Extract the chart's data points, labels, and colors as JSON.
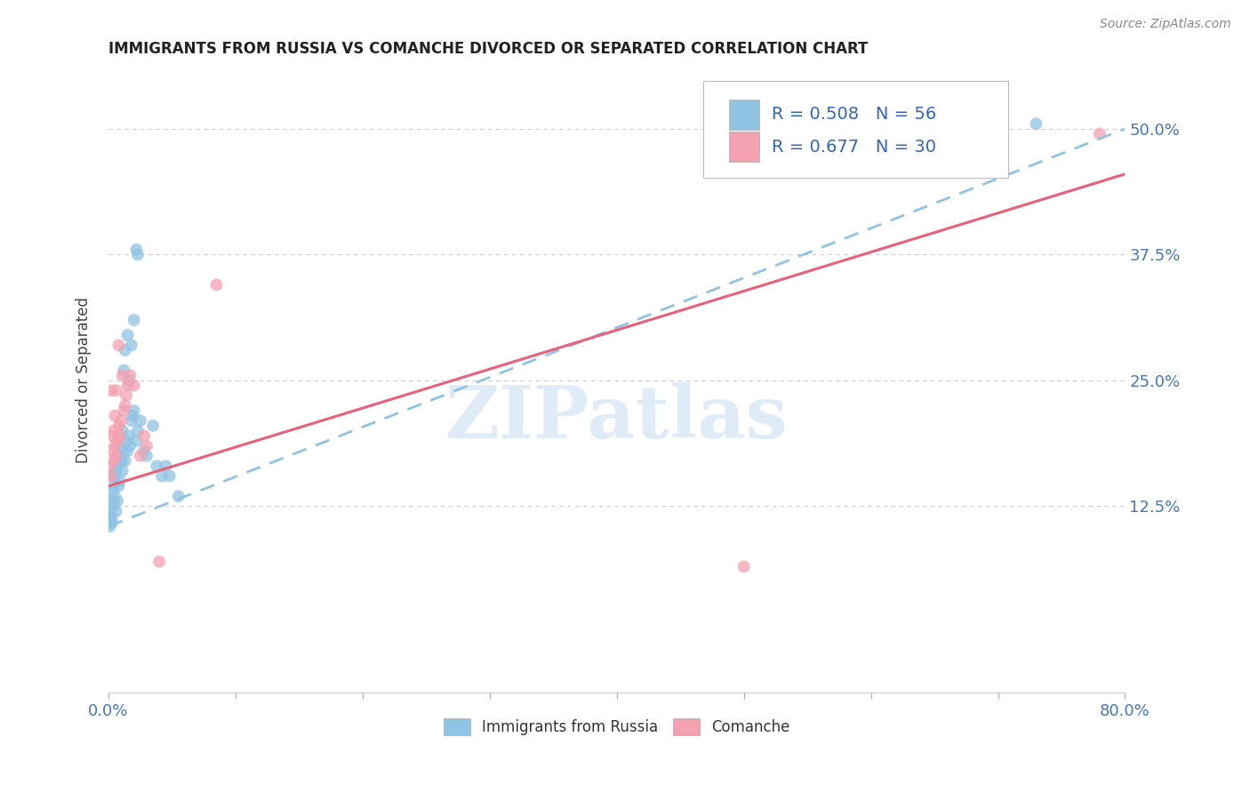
{
  "title": "IMMIGRANTS FROM RUSSIA VS COMANCHE DIVORCED OR SEPARATED CORRELATION CHART",
  "source": "Source: ZipAtlas.com",
  "ylabel": "Divorced or Separated",
  "ytick_labels": [
    "12.5%",
    "25.0%",
    "37.5%",
    "50.0%"
  ],
  "ytick_values": [
    0.125,
    0.25,
    0.375,
    0.5
  ],
  "xlim": [
    0.0,
    0.8
  ],
  "ylim": [
    -0.06,
    0.56
  ],
  "legend_russia": {
    "R": 0.508,
    "N": 56
  },
  "legend_comanche": {
    "R": 0.677,
    "N": 30
  },
  "watermark": "ZIPatlas",
  "russia_scatter": [
    [
      0.001,
      0.105
    ],
    [
      0.001,
      0.112
    ],
    [
      0.001,
      0.118
    ],
    [
      0.002,
      0.108
    ],
    [
      0.002,
      0.115
    ],
    [
      0.002,
      0.125
    ],
    [
      0.003,
      0.11
    ],
    [
      0.003,
      0.13
    ],
    [
      0.003,
      0.14
    ],
    [
      0.004,
      0.125
    ],
    [
      0.004,
      0.145
    ],
    [
      0.004,
      0.155
    ],
    [
      0.005,
      0.135
    ],
    [
      0.005,
      0.155
    ],
    [
      0.005,
      0.16
    ],
    [
      0.006,
      0.12
    ],
    [
      0.006,
      0.16
    ],
    [
      0.007,
      0.13
    ],
    [
      0.007,
      0.165
    ],
    [
      0.008,
      0.145
    ],
    [
      0.008,
      0.175
    ],
    [
      0.009,
      0.15
    ],
    [
      0.009,
      0.185
    ],
    [
      0.01,
      0.17
    ],
    [
      0.01,
      0.17
    ],
    [
      0.011,
      0.16
    ],
    [
      0.011,
      0.2
    ],
    [
      0.012,
      0.18
    ],
    [
      0.012,
      0.26
    ],
    [
      0.013,
      0.17
    ],
    [
      0.013,
      0.28
    ],
    [
      0.014,
      0.19
    ],
    [
      0.015,
      0.18
    ],
    [
      0.015,
      0.295
    ],
    [
      0.016,
      0.195
    ],
    [
      0.016,
      0.25
    ],
    [
      0.017,
      0.185
    ],
    [
      0.018,
      0.21
    ],
    [
      0.018,
      0.285
    ],
    [
      0.019,
      0.215
    ],
    [
      0.02,
      0.22
    ],
    [
      0.02,
      0.31
    ],
    [
      0.022,
      0.19
    ],
    [
      0.022,
      0.38
    ],
    [
      0.023,
      0.2
    ],
    [
      0.023,
      0.375
    ],
    [
      0.025,
      0.21
    ],
    [
      0.028,
      0.18
    ],
    [
      0.03,
      0.175
    ],
    [
      0.035,
      0.205
    ],
    [
      0.038,
      0.165
    ],
    [
      0.042,
      0.155
    ],
    [
      0.045,
      0.165
    ],
    [
      0.048,
      0.155
    ],
    [
      0.055,
      0.135
    ],
    [
      0.73,
      0.505
    ]
  ],
  "comanche_scatter": [
    [
      0.001,
      0.165
    ],
    [
      0.002,
      0.155
    ],
    [
      0.002,
      0.24
    ],
    [
      0.003,
      0.18
    ],
    [
      0.003,
      0.195
    ],
    [
      0.004,
      0.17
    ],
    [
      0.004,
      0.2
    ],
    [
      0.005,
      0.185
    ],
    [
      0.005,
      0.215
    ],
    [
      0.006,
      0.175
    ],
    [
      0.006,
      0.24
    ],
    [
      0.007,
      0.19
    ],
    [
      0.008,
      0.205
    ],
    [
      0.008,
      0.285
    ],
    [
      0.009,
      0.195
    ],
    [
      0.01,
      0.21
    ],
    [
      0.011,
      0.255
    ],
    [
      0.012,
      0.22
    ],
    [
      0.013,
      0.225
    ],
    [
      0.014,
      0.235
    ],
    [
      0.015,
      0.245
    ],
    [
      0.017,
      0.255
    ],
    [
      0.02,
      0.245
    ],
    [
      0.025,
      0.175
    ],
    [
      0.028,
      0.195
    ],
    [
      0.03,
      0.185
    ],
    [
      0.04,
      0.07
    ],
    [
      0.085,
      0.345
    ],
    [
      0.5,
      0.065
    ],
    [
      0.78,
      0.495
    ]
  ],
  "russia_line": {
    "x0": 0.0,
    "y0": 0.105,
    "x1": 0.8,
    "y1": 0.5
  },
  "comanche_line": {
    "x0": 0.0,
    "y0": 0.145,
    "x1": 0.8,
    "y1": 0.455
  },
  "scatter_russia_color": "#90c4e4",
  "scatter_comanche_color": "#f4a0b0",
  "russia_line_color": "#90c4e4",
  "comanche_line_color": "#e8607a",
  "background_color": "#ffffff",
  "grid_color": "#cccccc"
}
